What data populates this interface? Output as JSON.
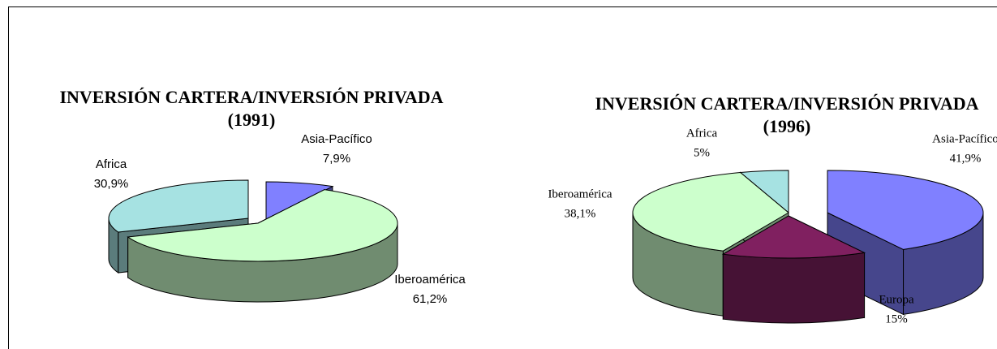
{
  "chart_data": [
    {
      "type": "pie3d",
      "title": "INVERSIÓN CARTERA/INVERSIÓN PRIVADA (1991)",
      "categories": [
        "Asia-Pacífico",
        "Iberoamérica",
        "Africa"
      ],
      "values": [
        7.9,
        61.2,
        30.9
      ],
      "value_labels": [
        "7,9%",
        "61,2%",
        "30,9%"
      ],
      "colors": [
        "#8080ff",
        "#ccffcc",
        "#a6e2e2"
      ]
    },
    {
      "type": "pie3d",
      "title": "INVERSIÓN CARTERA/INVERSIÓN PRIVADA (1996)",
      "categories": [
        "Asia-Pacífico",
        "Europa",
        "Iberoamérica",
        "Africa"
      ],
      "values": [
        41.9,
        15,
        38.1,
        5
      ],
      "value_labels": [
        "41,9%",
        "15%",
        "38,1%",
        "5%"
      ],
      "colors": [
        "#8080ff",
        "#802060",
        "#ccffcc",
        "#a6e2e2"
      ]
    }
  ]
}
